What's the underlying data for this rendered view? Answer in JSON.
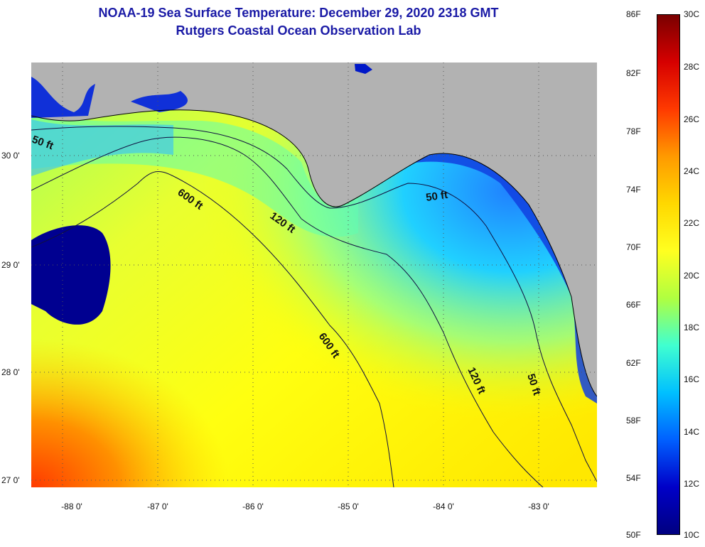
{
  "title": "NOAA-19 Sea Surface Temperature:  December 29, 2020 2318 GMT",
  "subtitle": "Rutgers Coastal Ocean Observation Lab",
  "map": {
    "lon_labels": [
      "-88 0'",
      "-87 0'",
      "-86 0'",
      "-85 0'",
      "-84 0'",
      "-83 0'"
    ],
    "lat_labels": [
      "30 0'",
      "29 0'",
      "28 0'",
      "27 0'"
    ],
    "contour_labels": [
      "50 ft",
      "600 ft",
      "120 ft",
      "50 ft",
      "600 ft",
      "120 ft",
      "50 ft"
    ],
    "land_color": "#b2b2b2"
  },
  "colorbar": {
    "fahrenheit_labels": [
      "86F",
      "82F",
      "78F",
      "74F",
      "70F",
      "66F",
      "62F",
      "58F",
      "54F",
      "50F"
    ],
    "celsius_labels": [
      "30C",
      "28C",
      "26C",
      "24C",
      "22C",
      "20C",
      "18C",
      "16C",
      "14C",
      "12C",
      "10C"
    ],
    "colors": [
      "#7a0000",
      "#d60000",
      "#ff3a00",
      "#ff9a00",
      "#ffd800",
      "#ffff20",
      "#b0ff40",
      "#40ffd0",
      "#00c0ff",
      "#0060ff",
      "#0000c8",
      "#000080"
    ]
  }
}
